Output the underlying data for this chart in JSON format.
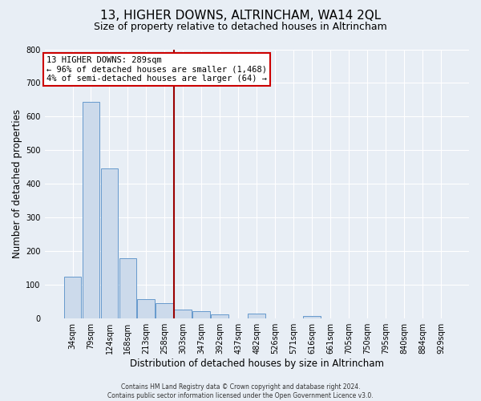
{
  "title": "13, HIGHER DOWNS, ALTRINCHAM, WA14 2QL",
  "subtitle": "Size of property relative to detached houses in Altrincham",
  "xlabel": "Distribution of detached houses by size in Altrincham",
  "ylabel": "Number of detached properties",
  "bar_labels": [
    "34sqm",
    "79sqm",
    "124sqm",
    "168sqm",
    "213sqm",
    "258sqm",
    "303sqm",
    "347sqm",
    "392sqm",
    "437sqm",
    "482sqm",
    "526sqm",
    "571sqm",
    "616sqm",
    "661sqm",
    "705sqm",
    "750sqm",
    "795sqm",
    "840sqm",
    "884sqm",
    "929sqm"
  ],
  "bar_values": [
    125,
    645,
    445,
    180,
    58,
    45,
    27,
    22,
    13,
    0,
    15,
    0,
    0,
    8,
    0,
    0,
    0,
    0,
    0,
    0,
    0
  ],
  "bar_color": "#ccdaeb",
  "bar_edgecolor": "#6699cc",
  "vline_x": 5.5,
  "vline_color": "#990000",
  "annotation_text": "13 HIGHER DOWNS: 289sqm\n← 96% of detached houses are smaller (1,468)\n4% of semi-detached houses are larger (64) →",
  "annotation_box_edgecolor": "#cc0000",
  "annotation_box_facecolor": "#ffffff",
  "ylim": [
    0,
    800
  ],
  "yticks": [
    0,
    100,
    200,
    300,
    400,
    500,
    600,
    700,
    800
  ],
  "footer": "Contains HM Land Registry data © Crown copyright and database right 2024.\nContains public sector information licensed under the Open Government Licence v3.0.",
  "bg_color": "#e8eef5",
  "grid_color": "#ffffff",
  "title_fontsize": 11,
  "subtitle_fontsize": 9,
  "axis_label_fontsize": 8.5,
  "tick_fontsize": 7,
  "footer_fontsize": 5.5,
  "ann_fontsize": 7.5
}
